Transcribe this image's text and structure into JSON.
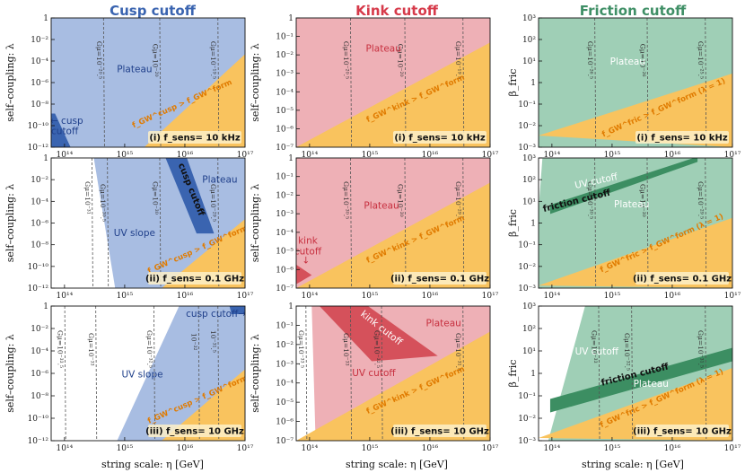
{
  "column_titles": [
    "Cusp cutoff",
    "Kink cutoff",
    "Friction cutoff"
  ],
  "x_axis_label": "string scale: η [GeV]",
  "colors": {
    "cusp_title": "#3a64b0",
    "kink_title": "#d63a4a",
    "friction_title": "#3f8f66",
    "cusp_fill": "#a8bde2",
    "kink_fill": "#eeb0b6",
    "friction_fill": "#9fcfb6",
    "orange_fill": "#f9c35e",
    "cusp_band": "#3a64b0",
    "kink_band": "#d5515b",
    "friction_band": "#3c8e62",
    "orange_text": "#e07b00"
  },
  "chart_data": [
    {
      "type": "area",
      "col": 0,
      "row": 0,
      "xscale": "log",
      "xlim": [
        60000000000000.0,
        1e+17
      ],
      "ylim": [
        1e-12,
        1
      ],
      "yscale": "log",
      "ylabel": "self–coupling: λ",
      "yticks": [
        "10⁻¹²",
        "10⁻¹⁰",
        "10⁻⁸",
        "10⁻⁶",
        "10⁻⁴",
        "10⁻²",
        "1"
      ],
      "xticks": [
        "10¹⁴",
        "10¹⁵",
        "10¹⁶",
        "10¹⁷"
      ],
      "freq_label": "(i) f_sens= 10 kHz",
      "regions": [
        "Plateau",
        "← cusp cutoff",
        "f_GW^cusp > f_GW^form"
      ],
      "gmu_lines": [
        "Gμ=10⁻²⁰.⁵",
        "Gμ=10⁻²⁰",
        "Gμ=10⁻¹⁹.⁵"
      ]
    },
    {
      "type": "area",
      "col": 1,
      "row": 0,
      "xscale": "log",
      "xlim": [
        60000000000000.0,
        1e+17
      ],
      "ylim": [
        1e-07,
        1
      ],
      "yscale": "log",
      "ylabel": "self–coupling: λ",
      "yticks": [
        "10⁻⁷",
        "10⁻⁶",
        "10⁻⁵",
        "10⁻⁴",
        "10⁻³",
        "10⁻²",
        "10⁻¹",
        "1"
      ],
      "xticks": [
        "10¹⁴",
        "10¹⁵",
        "10¹⁶",
        "10¹⁷"
      ],
      "freq_label": "(i) f_sens= 10 kHz",
      "regions": [
        "Plateau",
        "f_GW^kink > f_GW^form"
      ],
      "gmu_lines": [
        "Gμ=10⁻²⁰.⁵",
        "Gμ=10⁻²⁰",
        "Gμ=10⁻¹⁹.⁵"
      ]
    },
    {
      "type": "area",
      "col": 2,
      "row": 0,
      "xscale": "log",
      "xlim": [
        60000000000000.0,
        1e+17
      ],
      "ylim": [
        0.001,
        1000.0
      ],
      "yscale": "log",
      "ylabel": "β_fric",
      "yticks": [
        "10⁻³",
        "10⁻²",
        "10⁻¹",
        "1",
        "10¹",
        "10²",
        "10³"
      ],
      "xticks": [
        "10¹⁴",
        "10¹⁵",
        "10¹⁶",
        "10¹⁷"
      ],
      "freq_label": "(i) f_sens= 10 kHz",
      "regions": [
        "Plateau",
        "f_GW^fric > f_GW^form (λ = 1)"
      ],
      "gmu_lines": [
        "Gμ=10⁻²⁶.⁵",
        "Gμ=10⁻²⁶",
        "Gμ=10⁻²⁵.⁵"
      ]
    },
    {
      "type": "area",
      "col": 0,
      "row": 1,
      "xscale": "log",
      "xlim": [
        60000000000000.0,
        1e+17
      ],
      "ylim": [
        1e-12,
        1
      ],
      "yscale": "log",
      "ylabel": "self–coupling: λ",
      "yticks": [
        "10⁻¹²",
        "10⁻¹⁰",
        "10⁻⁸",
        "10⁻⁶",
        "10⁻⁴",
        "10⁻²",
        "1"
      ],
      "xticks": [
        "10¹⁴",
        "10¹⁵",
        "10¹⁶",
        "10¹⁷"
      ],
      "freq_label": "(ii) f_sens= 0.1 GHz",
      "regions": [
        "Plateau",
        "cusp cutoff",
        "UV slope",
        "f_GW^cusp > f_GW^form"
      ],
      "gmu_lines": [
        "Gμ=10⁻³¹",
        "Gμ=10⁻³⁰.⁵",
        "Gμ=10⁻³⁰",
        "Gμ=10⁻²⁹.⁵"
      ]
    },
    {
      "type": "area",
      "col": 1,
      "row": 1,
      "xscale": "log",
      "xlim": [
        60000000000000.0,
        1e+17
      ],
      "ylim": [
        1e-07,
        1
      ],
      "yscale": "log",
      "ylabel": "self–coupling: λ",
      "yticks": [
        "10⁻⁷",
        "10⁻⁶",
        "10⁻⁵",
        "10⁻⁴",
        "10⁻³",
        "10⁻²",
        "10⁻¹",
        "1"
      ],
      "xticks": [
        "10¹⁴",
        "10¹⁵",
        "10¹⁶",
        "10¹⁷"
      ],
      "freq_label": "(ii) f_sens= 0.1 GHz",
      "regions": [
        "Plateau",
        "kink cutoff ↓",
        "f_GW^kink > f_GW^form"
      ],
      "gmu_lines": [
        "Gμ=10⁻³⁰.⁵",
        "Gμ=10⁻³⁰",
        "Gμ=10⁻²⁹.⁵"
      ]
    },
    {
      "type": "area",
      "col": 2,
      "row": 1,
      "xscale": "log",
      "xlim": [
        60000000000000.0,
        1e+17
      ],
      "ylim": [
        0.001,
        1000.0
      ],
      "yscale": "log",
      "ylabel": "β_fric",
      "yticks": [
        "10⁻³",
        "10⁻²",
        "10⁻¹",
        "1",
        "10¹",
        "10²",
        "10³"
      ],
      "xticks": [
        "10¹⁴",
        "10¹⁵",
        "10¹⁶",
        "10¹⁷"
      ],
      "freq_label": "(ii) f_sens= 0.1 GHz",
      "regions": [
        "UV cutoff",
        "friction cutoff",
        "Plateau",
        "f_GW^fric > f_GW^form (λ = 1)"
      ],
      "gmu_lines": [
        "Gμ=10⁻³⁰.⁵",
        "Gμ=10⁻³⁰",
        "Gμ=10⁻²⁹.⁵"
      ]
    },
    {
      "type": "area",
      "col": 0,
      "row": 2,
      "xscale": "log",
      "xlim": [
        60000000000000.0,
        1e+17
      ],
      "ylim": [
        1e-12,
        1
      ],
      "yscale": "log",
      "ylabel": "self–coupling: λ",
      "yticks": [
        "10⁻¹²",
        "10⁻¹⁰",
        "10⁻⁸",
        "10⁻⁶",
        "10⁻⁴",
        "10⁻²",
        "1"
      ],
      "xticks": [
        "10¹⁴",
        "10¹⁵",
        "10¹⁶",
        "10¹⁷"
      ],
      "freq_label": "(iii) f_sens= 10 GHz",
      "regions": [
        "cusp cutoff→",
        "UV slope",
        "f_GW^cusp > f_GW^form"
      ],
      "gmu_lines": [
        "Gμ=10⁻³³.⁵",
        "Gμ=10⁻³³",
        "Gμ=10⁻³².⁵",
        "10⁻³²",
        "10⁻³¹.⁵"
      ]
    },
    {
      "type": "area",
      "col": 1,
      "row": 2,
      "xscale": "log",
      "xlim": [
        60000000000000.0,
        1e+17
      ],
      "ylim": [
        1e-07,
        1
      ],
      "yscale": "log",
      "ylabel": "self–coupling: λ",
      "yticks": [
        "10⁻⁷",
        "10⁻⁶",
        "10⁻⁵",
        "10⁻⁴",
        "10⁻³",
        "10⁻²",
        "10⁻¹",
        "1"
      ],
      "xticks": [
        "10¹⁴",
        "10¹⁵",
        "10¹⁶",
        "10¹⁷"
      ],
      "freq_label": "(iii) f_sens= 10 GHz",
      "regions": [
        "kink cutoff",
        "Plateau",
        "UV cutoff",
        "f_GW^kink > f_GW^form"
      ],
      "gmu_lines": [
        "Gμ=10⁻³³.⁵",
        "Gμ=10⁻³³",
        "Gμ=10⁻³².⁵",
        "Gμ=10⁻³¹.⁵"
      ]
    },
    {
      "type": "area",
      "col": 2,
      "row": 2,
      "xscale": "log",
      "xlim": [
        60000000000000.0,
        1e+17
      ],
      "ylim": [
        0.001,
        1000.0
      ],
      "yscale": "log",
      "ylabel": "β_fric",
      "yticks": [
        "10⁻³",
        "10⁻²",
        "10⁻¹",
        "1",
        "10¹",
        "10²",
        "10³"
      ],
      "xticks": [
        "10¹⁴",
        "10¹⁵",
        "10¹⁶",
        "10¹⁷"
      ],
      "freq_label": "(iii) f_sens= 10 GHz",
      "regions": [
        "UV cutoff",
        "friction cutoff",
        "Plateau",
        "f_GW^fric > f_GW^form (λ = 1)"
      ],
      "gmu_lines": [
        "Gμ=10⁻³³",
        "Gμ=10⁻³².⁵",
        "Gμ=10⁻³¹.⁵"
      ]
    }
  ]
}
